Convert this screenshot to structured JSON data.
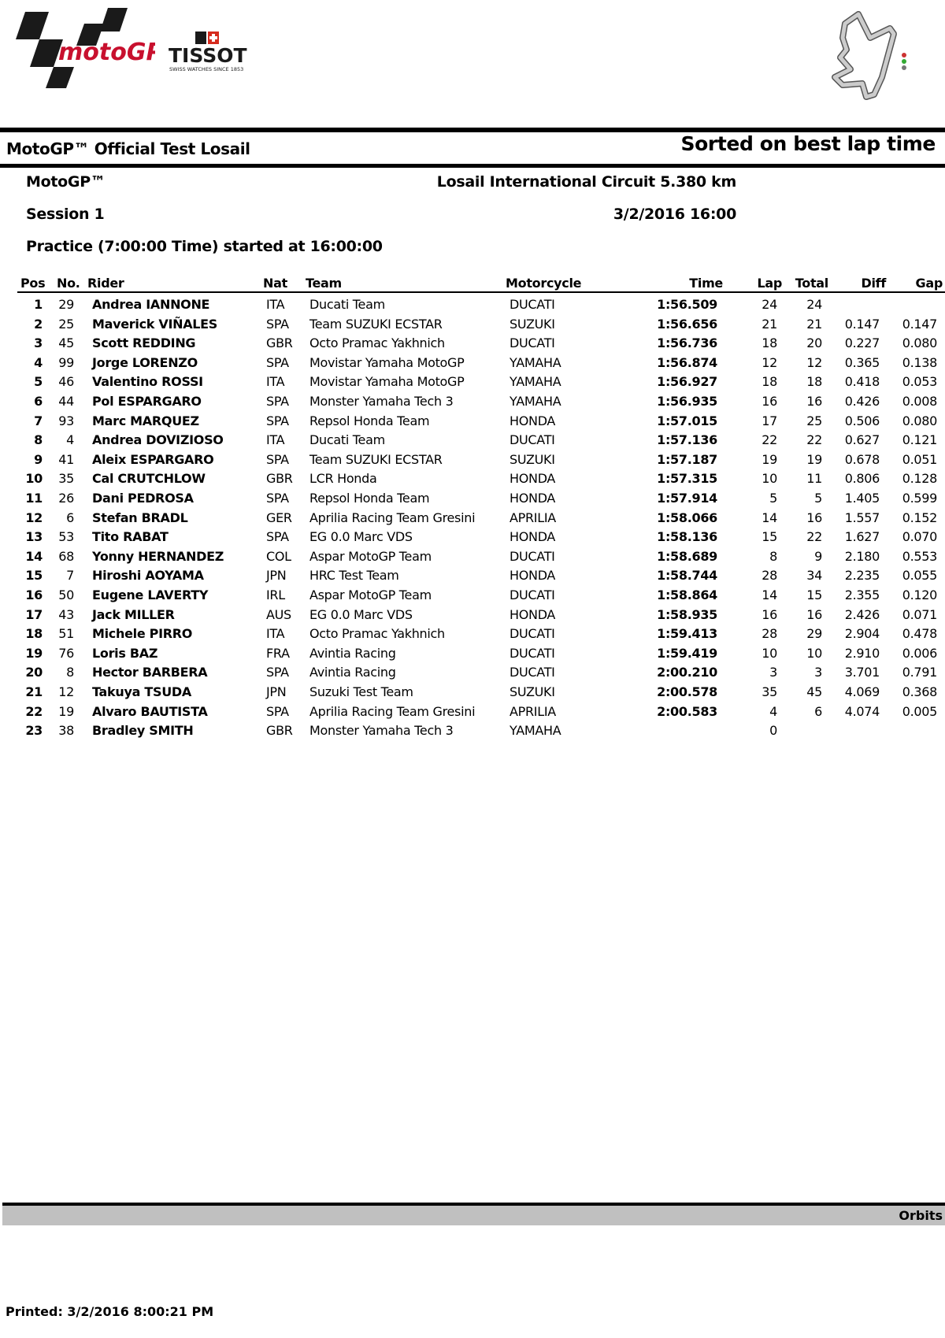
{
  "logos": {
    "motogp": "motoGP",
    "tissot": "TISSOT",
    "tissot_tagline": "SWISS WATCHES SINCE 1853",
    "track_map": "losail-track-map"
  },
  "header": {
    "title": "MotoGP™ Official Test Losail",
    "sort_note": "Sorted on best lap time",
    "category": "MotoGP™",
    "circuit": "Losail International Circuit 5.380 km",
    "session": "Session 1",
    "datetime": "3/2/2016 16:00",
    "practice": "Practice (7:00:00 Time) started at 16:00:00"
  },
  "table": {
    "columns": {
      "pos": "Pos",
      "no": "No.",
      "rider": "Rider",
      "nat": "Nat",
      "team": "Team",
      "moto": "Motorcycle",
      "time": "Time",
      "lap": "Lap",
      "total": "Total",
      "diff": "Diff",
      "gap": "Gap"
    },
    "rows": [
      {
        "pos": "1",
        "no": "29",
        "rider": "Andrea  IANNONE",
        "nat": "ITA",
        "team": "Ducati Team",
        "moto": "DUCATI",
        "time": "1:56.509",
        "lap": "24",
        "total": "24",
        "diff": "",
        "gap": ""
      },
      {
        "pos": "2",
        "no": "25",
        "rider": "Maverick VIÑALES",
        "nat": "SPA",
        "team": "Team SUZUKI ECSTAR",
        "moto": "SUZUKI",
        "time": "1:56.656",
        "lap": "21",
        "total": "21",
        "diff": "0.147",
        "gap": "0.147"
      },
      {
        "pos": "3",
        "no": "45",
        "rider": "Scott REDDING",
        "nat": "GBR",
        "team": "Octo Pramac Yakhnich",
        "moto": "DUCATI",
        "time": "1:56.736",
        "lap": "18",
        "total": "20",
        "diff": "0.227",
        "gap": "0.080"
      },
      {
        "pos": "4",
        "no": "99",
        "rider": "Jorge LORENZO",
        "nat": "SPA",
        "team": "Movistar Yamaha MotoGP",
        "moto": "YAMAHA",
        "time": "1:56.874",
        "lap": "12",
        "total": "12",
        "diff": "0.365",
        "gap": "0.138"
      },
      {
        "pos": "5",
        "no": "46",
        "rider": "Valentino ROSSI",
        "nat": "ITA",
        "team": "Movistar Yamaha MotoGP",
        "moto": "YAMAHA",
        "time": "1:56.927",
        "lap": "18",
        "total": "18",
        "diff": "0.418",
        "gap": "0.053"
      },
      {
        "pos": "6",
        "no": "44",
        "rider": "Pol ESPARGARO",
        "nat": "SPA",
        "team": "Monster Yamaha Tech 3",
        "moto": "YAMAHA",
        "time": "1:56.935",
        "lap": "16",
        "total": "16",
        "diff": "0.426",
        "gap": "0.008"
      },
      {
        "pos": "7",
        "no": "93",
        "rider": "Marc MARQUEZ",
        "nat": "SPA",
        "team": "Repsol Honda Team",
        "moto": "HONDA",
        "time": "1:57.015",
        "lap": "17",
        "total": "25",
        "diff": "0.506",
        "gap": "0.080"
      },
      {
        "pos": "8",
        "no": "4",
        "rider": "Andrea DOVIZIOSO",
        "nat": "ITA",
        "team": "Ducati Team",
        "moto": "DUCATI",
        "time": "1:57.136",
        "lap": "22",
        "total": "22",
        "diff": "0.627",
        "gap": "0.121"
      },
      {
        "pos": "9",
        "no": "41",
        "rider": "Aleix ESPARGARO",
        "nat": "SPA",
        "team": "Team SUZUKI ECSTAR",
        "moto": "SUZUKI",
        "time": "1:57.187",
        "lap": "19",
        "total": "19",
        "diff": "0.678",
        "gap": "0.051"
      },
      {
        "pos": "10",
        "no": "35",
        "rider": "Cal CRUTCHLOW",
        "nat": "GBR",
        "team": "LCR Honda",
        "moto": "HONDA",
        "time": "1:57.315",
        "lap": "10",
        "total": "11",
        "diff": "0.806",
        "gap": "0.128"
      },
      {
        "pos": "11",
        "no": "26",
        "rider": "Dani PEDROSA",
        "nat": "SPA",
        "team": "Repsol Honda Team",
        "moto": "HONDA",
        "time": "1:57.914",
        "lap": "5",
        "total": "5",
        "diff": "1.405",
        "gap": "0.599"
      },
      {
        "pos": "12",
        "no": "6",
        "rider": "Stefan BRADL",
        "nat": "GER",
        "team": "Aprilia Racing Team Gresini",
        "moto": "APRILIA",
        "time": "1:58.066",
        "lap": "14",
        "total": "16",
        "diff": "1.557",
        "gap": "0.152"
      },
      {
        "pos": "13",
        "no": "53",
        "rider": "Tito RABAT",
        "nat": "SPA",
        "team": "EG 0.0 Marc VDS",
        "moto": "HONDA",
        "time": "1:58.136",
        "lap": "15",
        "total": "22",
        "diff": "1.627",
        "gap": "0.070"
      },
      {
        "pos": "14",
        "no": "68",
        "rider": "Yonny HERNANDEZ",
        "nat": "COL",
        "team": "Aspar MotoGP Team",
        "moto": "DUCATI",
        "time": "1:58.689",
        "lap": "8",
        "total": "9",
        "diff": "2.180",
        "gap": "0.553"
      },
      {
        "pos": "15",
        "no": "7",
        "rider": "Hiroshi AOYAMA",
        "nat": "JPN",
        "team": "HRC Test Team",
        "moto": "HONDA",
        "time": "1:58.744",
        "lap": "28",
        "total": "34",
        "diff": "2.235",
        "gap": "0.055"
      },
      {
        "pos": "16",
        "no": "50",
        "rider": "Eugene LAVERTY",
        "nat": "IRL",
        "team": "Aspar MotoGP Team",
        "moto": "DUCATI",
        "time": "1:58.864",
        "lap": "14",
        "total": "15",
        "diff": "2.355",
        "gap": "0.120"
      },
      {
        "pos": "17",
        "no": "43",
        "rider": "Jack MILLER",
        "nat": "AUS",
        "team": "EG 0.0 Marc VDS",
        "moto": "HONDA",
        "time": "1:58.935",
        "lap": "16",
        "total": "16",
        "diff": "2.426",
        "gap": "0.071"
      },
      {
        "pos": "18",
        "no": "51",
        "rider": "Michele PIRRO",
        "nat": "ITA",
        "team": "Octo Pramac Yakhnich",
        "moto": "DUCATI",
        "time": "1:59.413",
        "lap": "28",
        "total": "29",
        "diff": "2.904",
        "gap": "0.478"
      },
      {
        "pos": "19",
        "no": "76",
        "rider": "Loris BAZ",
        "nat": "FRA",
        "team": "Avintia Racing",
        "moto": "DUCATI",
        "time": "1:59.419",
        "lap": "10",
        "total": "10",
        "diff": "2.910",
        "gap": "0.006"
      },
      {
        "pos": "20",
        "no": "8",
        "rider": "Hector BARBERA",
        "nat": "SPA",
        "team": "Avintia Racing",
        "moto": "DUCATI",
        "time": "2:00.210",
        "lap": "3",
        "total": "3",
        "diff": "3.701",
        "gap": "0.791"
      },
      {
        "pos": "21",
        "no": "12",
        "rider": "Takuya TSUDA",
        "nat": "JPN",
        "team": "Suzuki Test Team",
        "moto": "SUZUKI",
        "time": "2:00.578",
        "lap": "35",
        "total": "45",
        "diff": "4.069",
        "gap": "0.368"
      },
      {
        "pos": "22",
        "no": "19",
        "rider": "Alvaro BAUTISTA",
        "nat": "SPA",
        "team": "Aprilia Racing Team Gresini",
        "moto": "APRILIA",
        "time": "2:00.583",
        "lap": "4",
        "total": "6",
        "diff": "4.074",
        "gap": "0.005"
      },
      {
        "pos": "23",
        "no": "38",
        "rider": "Bradley SMITH",
        "nat": "GBR",
        "team": "Monster Yamaha Tech 3",
        "moto": "YAMAHA",
        "time": "",
        "lap": "0",
        "total": "",
        "diff": "",
        "gap": ""
      }
    ]
  },
  "footer": {
    "provider": "Orbits",
    "printed": "Printed: 3/2/2016 8:00:21 PM"
  },
  "colors": {
    "motogp_red": "#c8102e",
    "tissot_red": "#d52b1e",
    "footer_bar": "#c0c0c0",
    "track": "#9a9a9a"
  }
}
